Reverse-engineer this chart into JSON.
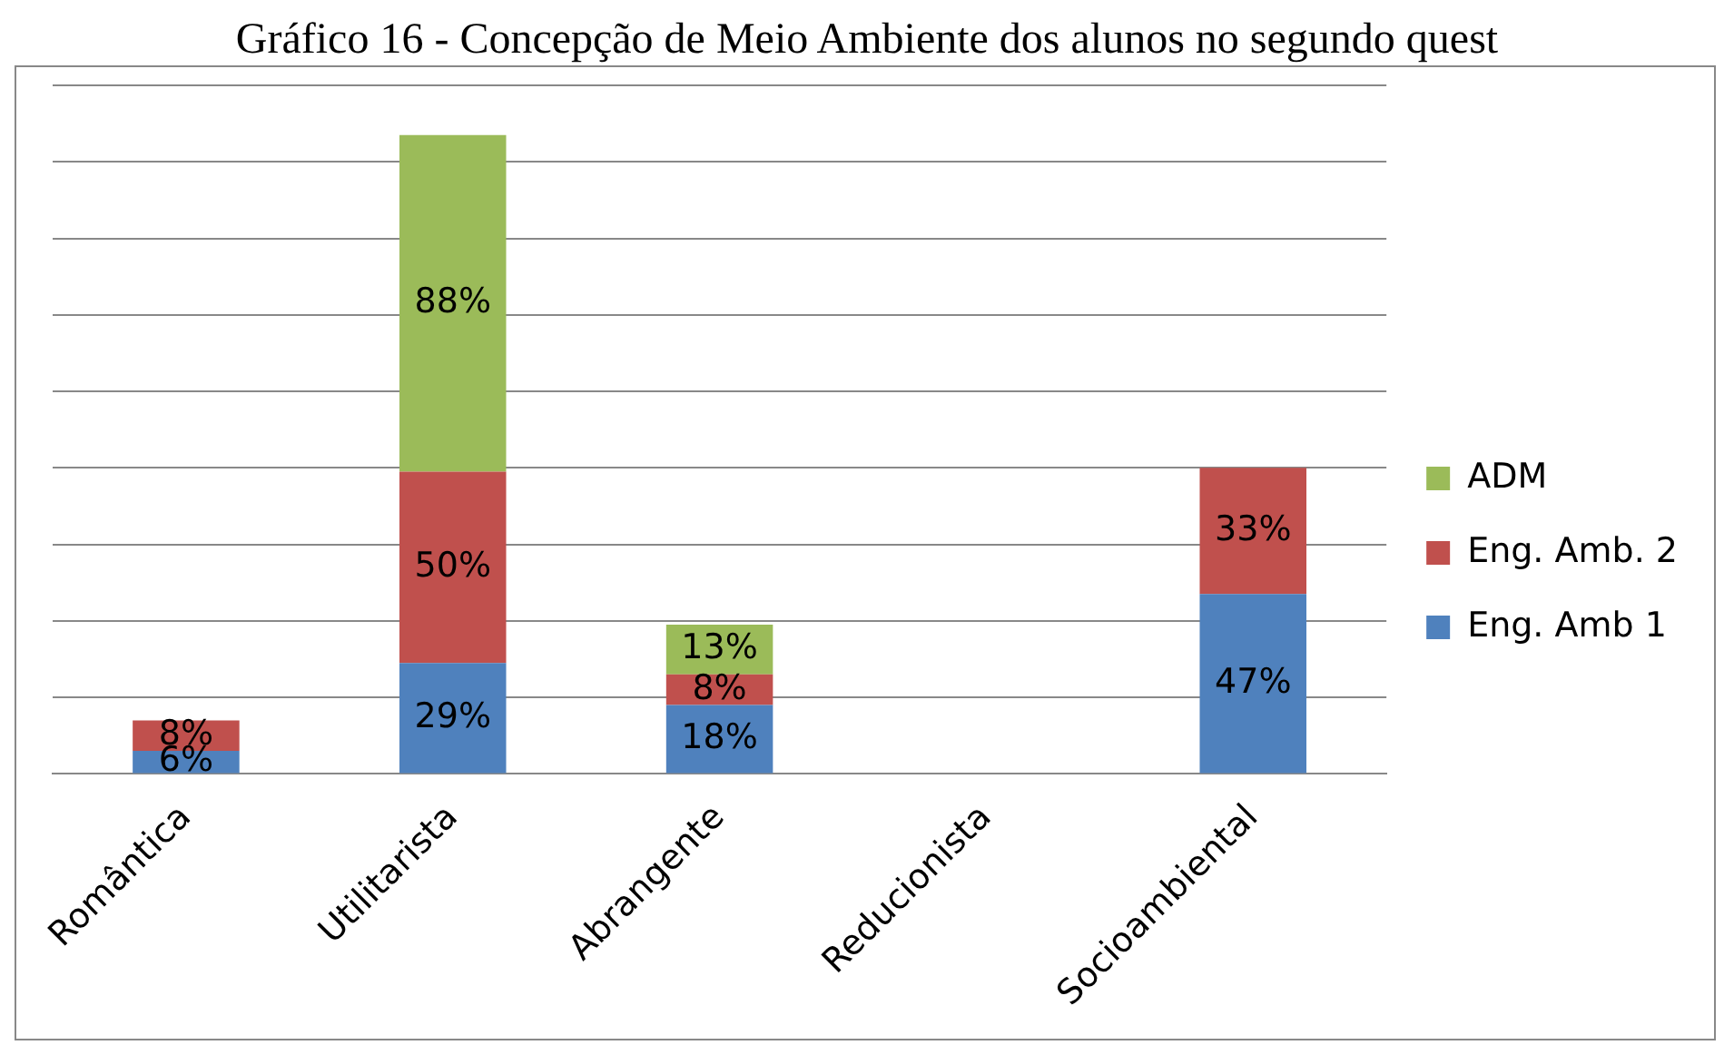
{
  "chart_data": {
    "type": "bar",
    "title": "Gráfico 16 - Concepção de Meio Ambiente dos alunos no segundo quest",
    "categories": [
      "Romântica",
      "Utilitarista",
      "Abrangente",
      "Reducionista",
      "Socioambiental"
    ],
    "stacked": true,
    "series": [
      {
        "name": "Eng. Amb 1",
        "color": "#4f81bd",
        "values": [
          6,
          29,
          18,
          null,
          47
        ],
        "value_labels": [
          "6%",
          "29%",
          "18%",
          null,
          "47%"
        ]
      },
      {
        "name": "Eng. Amb. 2",
        "color": "#c0504d",
        "values": [
          8,
          50,
          8,
          null,
          33
        ],
        "value_labels": [
          "8%",
          "50%",
          "8%",
          null,
          "33%"
        ]
      },
      {
        "name": "ADM",
        "color": "#9bbb59",
        "values": [
          null,
          88,
          13,
          null,
          null
        ],
        "value_labels": [
          null,
          "88%",
          "13%",
          null,
          null
        ]
      }
    ],
    "ylim": [
      0,
      180
    ],
    "yticks": [
      {
        "value": 0,
        "label": null
      },
      {
        "value": 20,
        "label": null
      },
      {
        "value": 40,
        "label": null
      },
      {
        "value": 60,
        "label": null
      },
      {
        "value": 80,
        "label": null
      },
      {
        "value": 100,
        "label": null
      },
      {
        "value": 120,
        "label": null
      },
      {
        "value": 140,
        "label": null
      },
      {
        "value": 160,
        "label": null
      },
      {
        "value": 180,
        "label": null
      }
    ],
    "grid": "y",
    "legend": "right",
    "tick_labels": "x"
  }
}
